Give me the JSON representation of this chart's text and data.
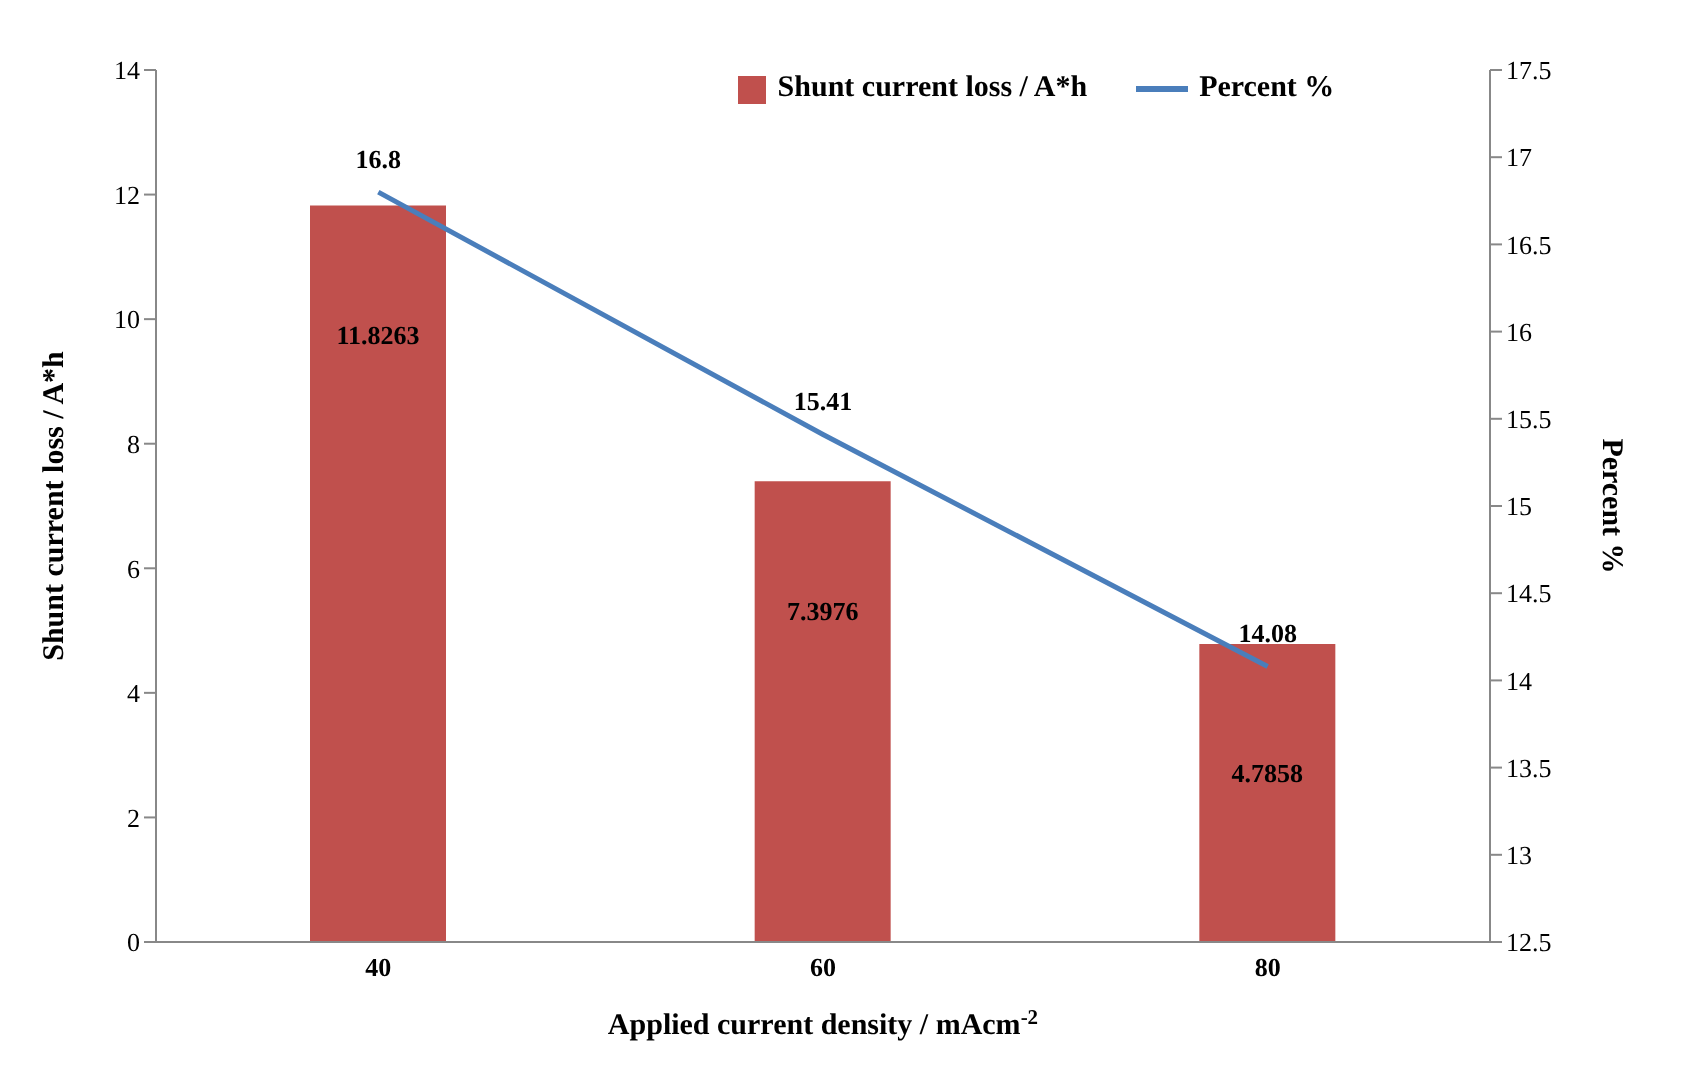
{
  "chart_data": {
    "type": "bar",
    "xlabel": "Applied current density / mAcm$^{-2}$",
    "ylabel": "Shunt current loss / A*h",
    "y2label": "Percent %",
    "categories": [
      "40",
      "60",
      "80"
    ],
    "series": [
      {
        "name": "Shunt current loss / A*h",
        "color": "#c0504d",
        "values": [
          11.8263,
          7.3976,
          4.7858
        ]
      },
      {
        "name": "Percent %",
        "type": "line",
        "axis": "y2",
        "color": "#4a7ebb",
        "values": [
          16.8,
          15.41,
          14.08
        ]
      }
    ],
    "ylim": [
      0,
      14
    ],
    "yticks": [
      0,
      2,
      4,
      6,
      8,
      10,
      12,
      14
    ],
    "y2lim": [
      12.5,
      17.5
    ],
    "y2ticks": [
      12.5,
      13,
      13.5,
      14,
      14.5,
      15,
      15.5,
      16,
      16.5,
      17,
      17.5
    ],
    "data_labels": true,
    "legend": "top",
    "grid": false,
    "marker": "none"
  }
}
